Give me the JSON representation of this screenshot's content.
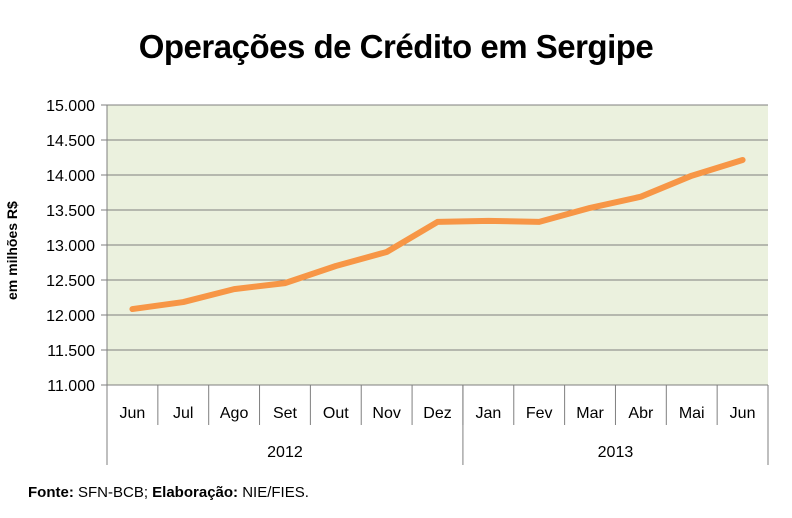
{
  "chart_data": {
    "type": "line",
    "title": "Operações de Crédito em Sergipe",
    "ylabel": "em milhões R$",
    "xlabel": "",
    "ylim": [
      11000,
      15000
    ],
    "yticks": [
      11000,
      11500,
      12000,
      12500,
      13000,
      13500,
      14000,
      14500,
      15000
    ],
    "ytick_labels": [
      "11.000",
      "11.500",
      "12.000",
      "12.500",
      "13.000",
      "13.500",
      "14.000",
      "14.500",
      "15.000"
    ],
    "grid": true,
    "legend": "none",
    "categories": [
      "Jun",
      "Jul",
      "Ago",
      "Set",
      "Out",
      "Nov",
      "Dez",
      "Jan",
      "Fev",
      "Mar",
      "Abr",
      "Mai",
      "Jun"
    ],
    "groups": [
      {
        "label": "2012",
        "count": 7
      },
      {
        "label": "2013",
        "count": 6
      }
    ],
    "series": [
      {
        "name": "Operações de Crédito",
        "color": "#F79646",
        "values": [
          12085,
          12185,
          12370,
          12455,
          12700,
          12900,
          13330,
          13345,
          13330,
          13530,
          13690,
          13990,
          14215
        ]
      }
    ],
    "plot_background": "#EBF1DE",
    "gridline_color": "#7F7F7F"
  },
  "footer": {
    "source_label": "Fonte:",
    "source_value": " SFN-BCB; ",
    "elaboration_label": "Elaboração:",
    "elaboration_value": " NIE/FIES."
  }
}
